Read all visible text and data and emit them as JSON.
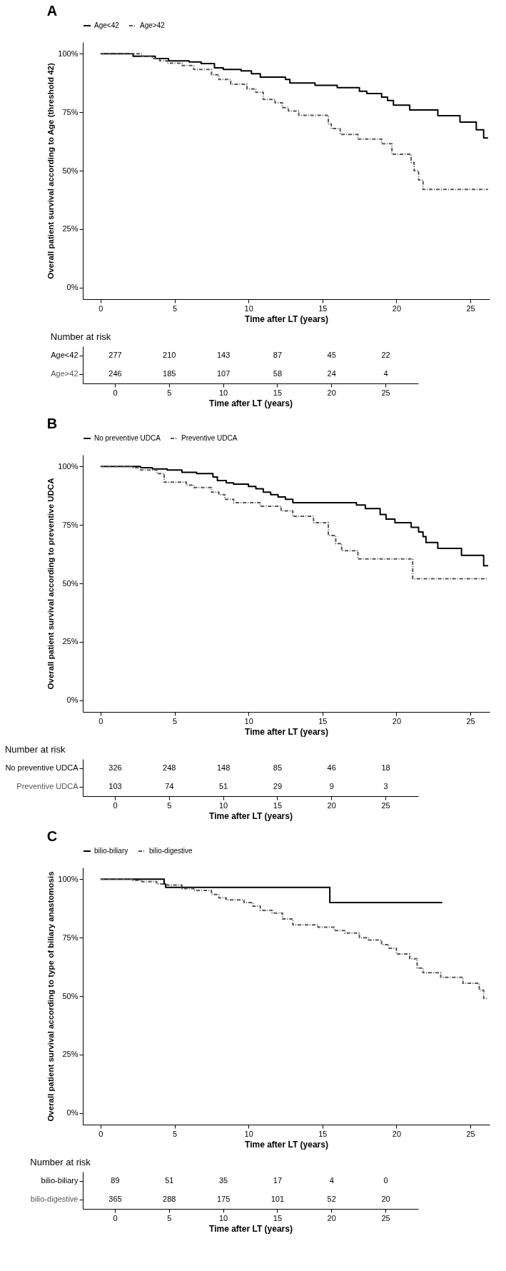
{
  "chart_data": [
    {
      "type": "step",
      "annotations": [
        "A"
      ],
      "ylabel": "Overall patient survival according to Age (threshold 42)",
      "xlabel": "Time after LT (years)",
      "legend": "top",
      "xlim": [
        -1.2,
        26.3
      ],
      "xticks": [
        0,
        5,
        10,
        15,
        20,
        25
      ],
      "ylim": [
        -5,
        105
      ],
      "yticks": [
        {
          "value": 0,
          "label": "0%"
        },
        {
          "value": 25,
          "label": "25%"
        },
        {
          "value": 50,
          "label": "50%"
        },
        {
          "value": 75,
          "label": "75%"
        },
        {
          "value": 100,
          "label": "100%"
        }
      ],
      "series": [
        {
          "name": "Age<42",
          "color": "#000000",
          "line_style": "solid",
          "x": [
            0,
            2.2,
            3.7,
            4.6,
            6.0,
            6.8,
            7.7,
            8.3,
            9.5,
            10.2,
            10.8,
            12.5,
            12.8,
            14.5,
            16.0,
            17.5,
            18.0,
            19.0,
            19.4,
            19.8,
            20.9,
            22.8,
            24.3,
            25.4,
            25.9,
            26.2
          ],
          "values": [
            100,
            99,
            98,
            97,
            96.5,
            95.8,
            94,
            93.3,
            92.7,
            91.5,
            90,
            89,
            87.5,
            86.5,
            85.5,
            84,
            83,
            81.5,
            80,
            78,
            76,
            73.5,
            70.8,
            67.5,
            64,
            64
          ]
        },
        {
          "name": "Age>42",
          "color": "#555555",
          "line_style": "dashed",
          "x": [
            0,
            2.8,
            3.5,
            4.0,
            4.5,
            5.5,
            6.3,
            7.5,
            8.0,
            8.8,
            9.9,
            10.5,
            11.0,
            11.8,
            12.3,
            12.7,
            13.4,
            15.4,
            15.6,
            16.2,
            17.4,
            19.0,
            19.7,
            21.0,
            21.2,
            21.5,
            21.8,
            26.2
          ],
          "values": [
            100,
            99,
            98,
            97,
            96,
            95,
            93.3,
            91,
            89,
            87,
            85,
            83.5,
            80.5,
            79,
            77,
            75.5,
            73.7,
            70,
            68,
            65.5,
            63.5,
            61.5,
            57,
            53.5,
            50,
            46,
            42,
            42
          ]
        }
      ]
    },
    {
      "type": "heatmap",
      "title": "Number at risk",
      "xlabel": "Time after LT (years)",
      "categories": [
        "0",
        "5",
        "10",
        "15",
        "20",
        "25"
      ],
      "y_categories": [
        "Age<42",
        "Age>42"
      ],
      "data_labels": true,
      "cells": [
        [
          277,
          210,
          143,
          87,
          45,
          22
        ],
        [
          246,
          185,
          107,
          58,
          24,
          4
        ]
      ]
    },
    {
      "type": "step",
      "annotations": [
        "B"
      ],
      "ylabel": "Overall patient survival according to preventive UDCA",
      "xlabel": "Time after LT (years)",
      "legend": "top",
      "xlim": [
        -1.2,
        26.3
      ],
      "xticks": [
        0,
        5,
        10,
        15,
        20,
        25
      ],
      "ylim": [
        -5,
        105
      ],
      "yticks": [
        {
          "value": 0,
          "label": "0%"
        },
        {
          "value": 25,
          "label": "25%"
        },
        {
          "value": 50,
          "label": "50%"
        },
        {
          "value": 75,
          "label": "75%"
        },
        {
          "value": 100,
          "label": "100%"
        }
      ],
      "series": [
        {
          "name": "No preventive UDCA",
          "color": "#000000",
          "line_style": "solid",
          "x": [
            0,
            2.7,
            3.5,
            4.5,
            5.5,
            6.5,
            7.6,
            7.9,
            8.5,
            9.0,
            10.0,
            10.5,
            11.0,
            11.5,
            12.0,
            12.5,
            13.0,
            17.3,
            17.9,
            18.9,
            19.3,
            19.9,
            21.0,
            21.5,
            21.8,
            22.0,
            22.8,
            24.4,
            25.9,
            26.2
          ],
          "values": [
            100,
            99.5,
            99,
            98.5,
            97.5,
            97,
            95.5,
            94,
            93,
            92.5,
            91.5,
            90.5,
            89,
            88,
            87,
            86,
            84.5,
            83.5,
            82,
            79.5,
            77.5,
            76,
            74,
            72,
            70,
            67.5,
            65,
            62,
            57.6,
            57.6
          ]
        },
        {
          "name": "Preventive UDCA",
          "color": "#555555",
          "line_style": "dashed",
          "x": [
            0,
            2.2,
            2.7,
            3.8,
            4.3,
            5.8,
            6.3,
            7.5,
            8.0,
            8.4,
            9.0,
            10.8,
            12.2,
            13.0,
            14.4,
            15.4,
            15.9,
            16.3,
            17.4,
            21.1,
            26.2
          ],
          "values": [
            100,
            99.5,
            98.5,
            97,
            93.3,
            92,
            91,
            89,
            88,
            86,
            84.5,
            83,
            81,
            78.7,
            76,
            70.5,
            67,
            64,
            60.5,
            52,
            52
          ]
        }
      ]
    },
    {
      "type": "heatmap",
      "title": "Number at risk",
      "xlabel": "Time after LT (years)",
      "categories": [
        "0",
        "5",
        "10",
        "15",
        "20",
        "25"
      ],
      "y_categories": [
        "No preventive UDCA",
        "Preventive UDCA"
      ],
      "data_labels": true,
      "cells": [
        [
          326,
          248,
          148,
          85,
          46,
          18
        ],
        [
          103,
          74,
          51,
          29,
          9,
          3
        ]
      ]
    },
    {
      "type": "step",
      "annotations": [
        "C"
      ],
      "ylabel": "Overall patient survival according to type of biliary anastomosis",
      "xlabel": "Time after LT (years)",
      "legend": "top",
      "xlim": [
        -1.2,
        26.3
      ],
      "xticks": [
        0,
        5,
        10,
        15,
        20,
        25
      ],
      "ylim": [
        -5,
        105
      ],
      "yticks": [
        {
          "value": 0,
          "label": "0%"
        },
        {
          "value": 25,
          "label": "25%"
        },
        {
          "value": 50,
          "label": "50%"
        },
        {
          "value": 75,
          "label": "75%"
        },
        {
          "value": 100,
          "label": "100%"
        }
      ],
      "series": [
        {
          "name": "bilio-biliary",
          "color": "#000000",
          "line_style": "solid",
          "x": [
            0,
            4.3,
            4.4,
            15.5,
            23.1
          ],
          "values": [
            100,
            98,
            96.5,
            90,
            90
          ]
        },
        {
          "name": "bilio-digestive",
          "color": "#555555",
          "line_style": "dashed",
          "x": [
            0,
            2.2,
            2.8,
            3.8,
            4.5,
            5.5,
            6.3,
            7.5,
            8.0,
            8.5,
            9.7,
            10.3,
            10.8,
            11.6,
            12.3,
            13.0,
            14.7,
            15.8,
            16.5,
            17.5,
            18.1,
            19.0,
            19.5,
            20.0,
            20.9,
            21.4,
            21.8,
            23.0,
            24.5,
            25.6,
            25.9,
            26.2
          ],
          "values": [
            100,
            99.5,
            99,
            98,
            97.5,
            96,
            95.2,
            93.5,
            92,
            91.2,
            90,
            88.5,
            86.7,
            85.5,
            83,
            80.5,
            79.5,
            78,
            77,
            75,
            74,
            72,
            70.5,
            68,
            66,
            62,
            60,
            58,
            55.5,
            52.5,
            49,
            49
          ]
        }
      ]
    },
    {
      "type": "heatmap",
      "title": "Number at risk",
      "xlabel": "Time after LT (years)",
      "categories": [
        "0",
        "5",
        "10",
        "15",
        "20",
        "25"
      ],
      "y_categories": [
        "bilio-biliary",
        "bilio-digestive"
      ],
      "data_labels": true,
      "cells": [
        [
          89,
          51,
          35,
          17,
          4,
          0
        ],
        [
          365,
          288,
          175,
          101,
          52,
          20
        ]
      ]
    }
  ]
}
